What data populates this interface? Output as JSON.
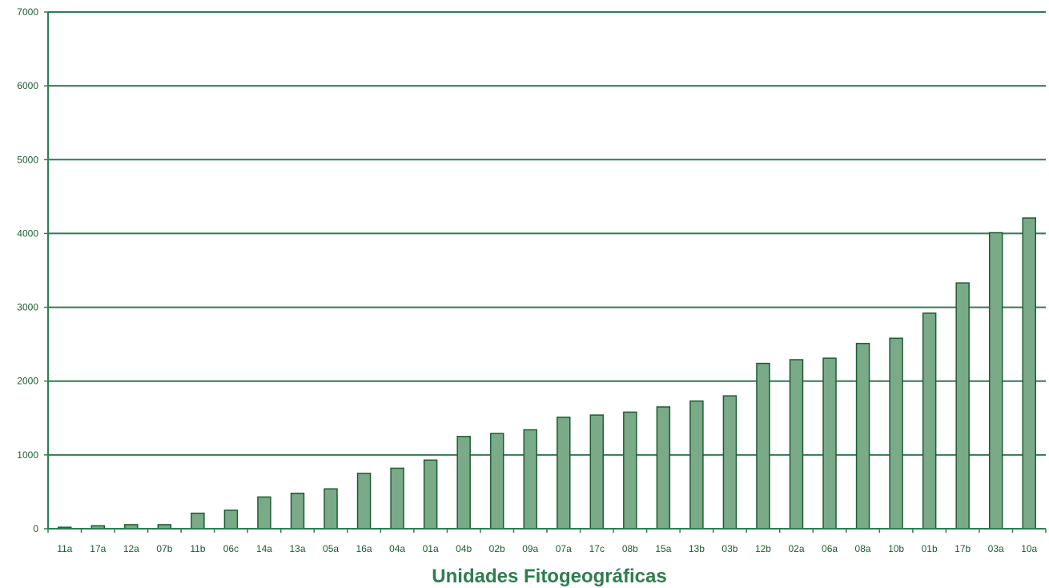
{
  "chart_data": {
    "type": "bar",
    "xlabel": "Unidades Fitogeográficas",
    "ylabel": "",
    "ylim": [
      0,
      7000
    ],
    "yticks": [
      0,
      1000,
      2000,
      3000,
      4000,
      5000,
      6000,
      7000
    ],
    "grid": true,
    "categories": [
      "11a",
      "17a",
      "12a",
      "07b",
      "11b",
      "06c",
      "14a",
      "13a",
      "05a",
      "16a",
      "04a",
      "01a",
      "04b",
      "02b",
      "09a",
      "07a",
      "17c",
      "08b",
      "15a",
      "13b",
      "03b",
      "12b",
      "02a",
      "06a",
      "08a",
      "10b",
      "01b",
      "17b",
      "03a",
      "10a"
    ],
    "values": [
      20,
      40,
      55,
      55,
      210,
      250,
      430,
      480,
      540,
      750,
      820,
      930,
      1250,
      1290,
      1340,
      1510,
      1540,
      1580,
      1650,
      1730,
      1800,
      2240,
      2290,
      2310,
      2510,
      2580,
      2920,
      3330,
      4010,
      4210
    ]
  },
  "colors": {
    "bar_fill": "#7aaa88",
    "bar_stroke": "#1e5c32",
    "grid": "#2e7d4f",
    "axis": "#2e7d4f",
    "text": "#1e5c32"
  }
}
